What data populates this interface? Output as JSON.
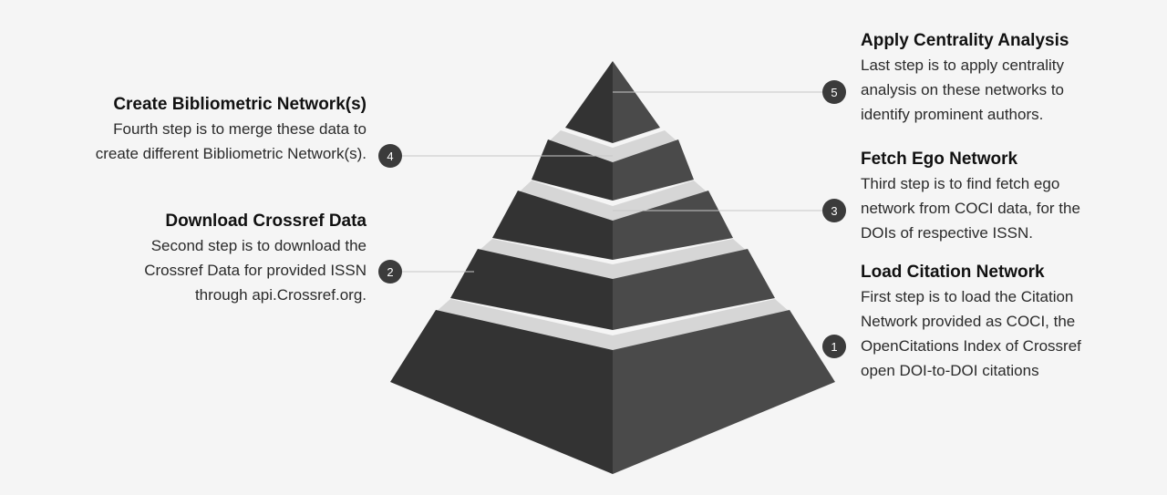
{
  "steps": [
    {
      "number": "1",
      "title": "Load Citation Network",
      "description": "First step is to load the Citation Network provided as COCI, the OpenCitations Index of Crossref open DOI-to-DOI citations"
    },
    {
      "number": "2",
      "title": "Download Crossref Data",
      "description": "Second step is to download the Crossref Data for provided ISSN through api.Crossref.org."
    },
    {
      "number": "3",
      "title": "Fetch Ego Network",
      "description": "Third step is to find fetch ego network from COCI data, for the DOIs of respective ISSN."
    },
    {
      "number": "4",
      "title": "Create Bibliometric Network(s)",
      "description": "Fourth step is to merge these data to create different Bibliometric Network(s)."
    },
    {
      "number": "5",
      "title": "Apply Centrality Analysis",
      "description": "Last step is to apply centrality analysis on these networks to identify prominent authors."
    }
  ],
  "colors": {
    "background": "#f5f5f5",
    "pyramid_left": "#333333",
    "pyramid_right": "#4a4a4a",
    "separator_band": "#d6d6d6",
    "badge": "#3b3b3b",
    "connector": "#c8c8c8"
  }
}
